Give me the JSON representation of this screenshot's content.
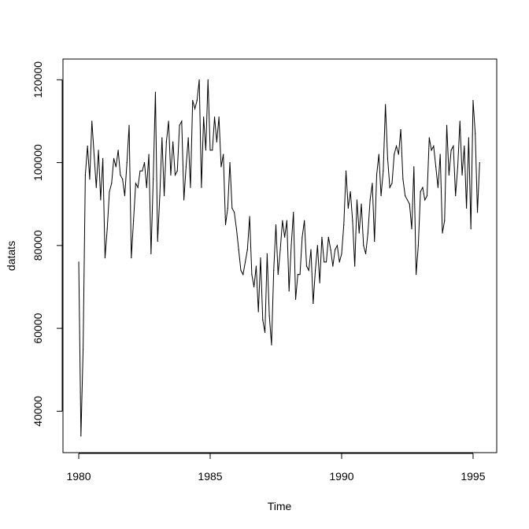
{
  "chart_data": {
    "type": "line",
    "title": "",
    "xlabel": "Time",
    "ylabel": "datats",
    "xlim": [
      1979.4,
      1995.9
    ],
    "ylim": [
      30000,
      125000
    ],
    "x_ticks": [
      1980,
      1985,
      1990,
      1995
    ],
    "x_tick_labels": [
      "1980",
      "1985",
      "1990",
      "1995"
    ],
    "y_ticks": [
      40000,
      60000,
      80000,
      100000,
      120000
    ],
    "y_tick_labels": [
      "40000",
      "60000",
      "80000",
      "100000",
      "120000"
    ],
    "grid": false,
    "legend": "none",
    "line_color": "#000000",
    "series": [
      {
        "start": 1980.0,
        "frequency": 12,
        "values": [
          76000,
          34000,
          55000,
          97000,
          104000,
          96000,
          110000,
          102000,
          94000,
          103000,
          91000,
          101000,
          77000,
          84000,
          93000,
          95000,
          101000,
          99000,
          103000,
          97000,
          96000,
          92000,
          100000,
          109000,
          77000,
          86000,
          95000,
          94000,
          98000,
          98000,
          100000,
          94000,
          102000,
          78000,
          96000,
          117000,
          81000,
          92000,
          106000,
          92000,
          105000,
          110000,
          97000,
          105000,
          97000,
          98000,
          109000,
          110000,
          91000,
          99000,
          106000,
          94000,
          115000,
          113000,
          115000,
          120000,
          94000,
          111000,
          103000,
          120000,
          103000,
          103000,
          111000,
          105000,
          111000,
          99000,
          102000,
          85000,
          89000,
          100000,
          89000,
          88000,
          84000,
          79000,
          74000,
          73000,
          76000,
          79000,
          87000,
          73000,
          70000,
          75000,
          64000,
          77000,
          62000,
          59000,
          78000,
          63000,
          56000,
          74000,
          85000,
          73000,
          79000,
          86000,
          82000,
          86000,
          69000,
          80000,
          88000,
          67000,
          73000,
          73000,
          82000,
          86000,
          75000,
          74000,
          79000,
          66000,
          74000,
          80000,
          71000,
          82000,
          76000,
          76000,
          82000,
          79000,
          75000,
          79000,
          80000,
          76000,
          78000,
          85000,
          98000,
          89000,
          93000,
          86000,
          75000,
          91000,
          83000,
          90000,
          80000,
          78000,
          83000,
          91000,
          95000,
          81000,
          97000,
          102000,
          92000,
          98000,
          114000,
          101000,
          94000,
          95000,
          102000,
          104000,
          102000,
          108000,
          96000,
          92000,
          91000,
          90000,
          84000,
          99000,
          73000,
          80000,
          93000,
          94000,
          91000,
          92000,
          106000,
          103000,
          104000,
          99000,
          94000,
          102000,
          83000,
          86000,
          109000,
          97000,
          103000,
          104000,
          92000,
          99000,
          110000,
          97000,
          104000,
          89000,
          106000,
          84000,
          115000,
          107000,
          88000,
          100000
        ]
      }
    ]
  }
}
